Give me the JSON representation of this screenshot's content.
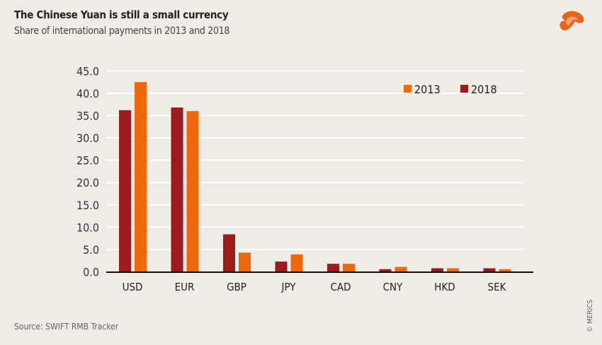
{
  "header": {
    "title": "The Chinese Yuan is still a small currency",
    "subtitle": "Share of international payments in 2013 and 2018"
  },
  "footer": {
    "source": "Source: SWIFT RMB Tracker",
    "copyright": "© MERICS"
  },
  "logo": {
    "name": "merics-logo-icon",
    "color": "#e8641b"
  },
  "chart_data": {
    "type": "bar",
    "title": "The Chinese Yuan is still a small currency",
    "subtitle": "Share of international payments in 2013 and 2018",
    "categories": [
      "USD",
      "EUR",
      "GBP",
      "JPY",
      "CAD",
      "CNY",
      "HKD",
      "SEK"
    ],
    "series": [
      {
        "name": "2018",
        "color": "#9b1b1f",
        "values": [
          36.2,
          36.8,
          8.4,
          2.3,
          1.8,
          0.6,
          0.8,
          0.8
        ]
      },
      {
        "name": "2013",
        "color": "#ec6a0c",
        "values": [
          42.5,
          36.0,
          4.3,
          3.9,
          1.8,
          1.1,
          0.8,
          0.6
        ]
      }
    ],
    "legend_order": [
      "2013",
      "2018"
    ],
    "legend_position": "top-right",
    "yticks": [
      "0.0",
      "5.0",
      "10.0",
      "15.0",
      "20.0",
      "25.0",
      "30.0",
      "35.0",
      "40.0",
      "45.0"
    ],
    "ylim": [
      0,
      45
    ],
    "grid": true,
    "xlabel": "",
    "ylabel": ""
  }
}
